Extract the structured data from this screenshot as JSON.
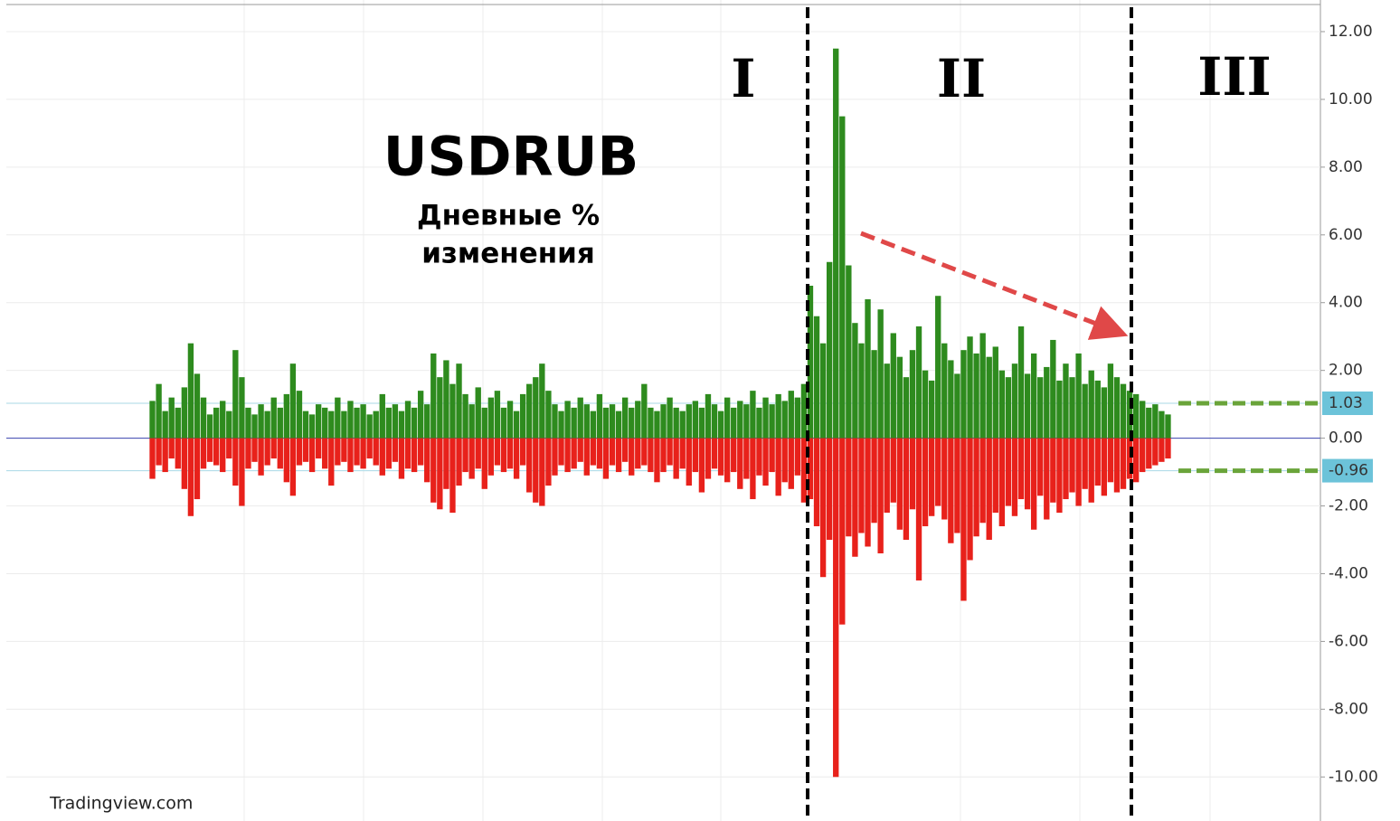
{
  "chart_data": {
    "type": "bar",
    "title": "USDRUB",
    "subtitle": [
      "Дневные %",
      "изменения"
    ],
    "regions": [
      "I",
      "II",
      "III"
    ],
    "watermark": "Tradingview.com",
    "ylim": [
      -11.3,
      12.8
    ],
    "yticks": [
      {
        "value": 12,
        "label": "12.00"
      },
      {
        "value": 10,
        "label": "10.00"
      },
      {
        "value": 8,
        "label": "8.00"
      },
      {
        "value": 6,
        "label": "6.00"
      },
      {
        "value": 4,
        "label": "4.00"
      },
      {
        "value": 2,
        "label": "2.00"
      },
      {
        "value": 0,
        "label": "0.00"
      },
      {
        "value": -2,
        "label": "-2.00"
      },
      {
        "value": -4,
        "label": "-4.00"
      },
      {
        "value": -6,
        "label": "-6.00"
      },
      {
        "value": -8,
        "label": "-8.00"
      },
      {
        "value": -10,
        "label": "-10.00"
      }
    ],
    "grid": true,
    "markers": [
      {
        "value": 1.03,
        "label": "1.03"
      },
      {
        "value": -0.96,
        "label": "-0.96"
      }
    ],
    "series": [
      {
        "color": "#2e8b1e",
        "values": [
          1.1,
          1.6,
          0.8,
          1.2,
          0.9,
          1.5,
          2.8,
          1.9,
          1.2,
          0.7,
          0.9,
          1.1,
          0.8,
          2.6,
          1.8,
          0.9,
          0.7,
          1.0,
          0.8,
          1.2,
          0.9,
          1.3,
          2.2,
          1.4,
          0.8,
          0.7,
          1.0,
          0.9,
          0.8,
          1.2,
          0.8,
          1.1,
          0.9,
          1.0,
          0.7,
          0.8,
          1.3,
          0.9,
          1.0,
          0.8,
          1.1,
          0.9,
          1.4,
          1.0,
          2.5,
          1.8,
          2.3,
          1.6,
          2.2,
          1.3,
          1.0,
          1.5,
          0.9,
          1.2,
          1.4,
          0.9,
          1.1,
          0.8,
          1.3,
          1.6,
          1.8,
          2.2,
          1.4,
          1.0,
          0.8,
          1.1,
          0.9,
          1.2,
          1.0,
          0.8,
          1.3,
          0.9,
          1.0,
          0.8,
          1.2,
          0.9,
          1.1,
          1.6,
          0.9,
          0.8,
          1.0,
          1.2,
          0.9,
          0.8,
          1.0,
          1.1,
          0.9,
          1.3,
          1.0,
          0.8,
          1.2,
          0.9,
          1.1,
          1.0,
          1.4,
          0.9,
          1.2,
          1.0,
          1.3,
          1.1,
          1.4,
          1.2,
          1.6,
          4.5,
          3.6,
          2.8,
          5.2,
          11.5,
          9.5,
          5.1,
          3.4,
          2.8,
          4.1,
          2.6,
          3.8,
          2.2,
          3.1,
          2.4,
          1.8,
          2.6,
          3.3,
          2.0,
          1.7,
          4.2,
          2.8,
          2.3,
          1.9,
          2.6,
          3.0,
          2.5,
          3.1,
          2.4,
          2.7,
          2.0,
          1.8,
          2.2,
          3.3,
          1.9,
          2.5,
          1.8,
          2.1,
          2.9,
          1.7,
          2.2,
          1.8,
          2.5,
          1.6,
          2.0,
          1.7,
          1.5,
          2.2,
          1.8,
          1.6,
          1.4,
          1.3,
          1.1,
          0.9,
          1.0,
          0.8,
          0.7
        ]
      },
      {
        "color": "#e8211b",
        "values": [
          -1.2,
          -0.8,
          -1.0,
          -0.6,
          -0.9,
          -1.5,
          -2.3,
          -1.8,
          -0.9,
          -0.7,
          -0.8,
          -1.0,
          -0.6,
          -1.4,
          -2.0,
          -0.9,
          -0.7,
          -1.1,
          -0.8,
          -0.6,
          -0.9,
          -1.3,
          -1.7,
          -0.8,
          -0.7,
          -1.0,
          -0.6,
          -0.9,
          -1.4,
          -0.8,
          -0.7,
          -1.0,
          -0.8,
          -0.9,
          -0.6,
          -0.8,
          -1.1,
          -0.9,
          -0.7,
          -1.2,
          -0.9,
          -1.0,
          -0.8,
          -1.3,
          -1.9,
          -2.1,
          -1.5,
          -2.2,
          -1.4,
          -1.0,
          -1.2,
          -0.9,
          -1.5,
          -1.1,
          -0.8,
          -1.0,
          -0.9,
          -1.2,
          -0.8,
          -1.6,
          -1.9,
          -2.0,
          -1.4,
          -1.1,
          -0.8,
          -1.0,
          -0.9,
          -0.7,
          -1.1,
          -0.8,
          -0.9,
          -1.2,
          -0.8,
          -1.0,
          -0.7,
          -1.1,
          -0.9,
          -0.8,
          -1.0,
          -1.3,
          -1.0,
          -0.8,
          -1.2,
          -0.9,
          -1.4,
          -1.0,
          -1.6,
          -1.2,
          -0.9,
          -1.1,
          -1.3,
          -1.0,
          -1.5,
          -1.2,
          -1.8,
          -1.1,
          -1.4,
          -1.0,
          -1.7,
          -1.3,
          -1.5,
          -1.1,
          -1.9,
          -1.8,
          -2.6,
          -4.1,
          -3.0,
          -10.0,
          -5.5,
          -2.9,
          -3.5,
          -2.8,
          -3.2,
          -2.5,
          -3.4,
          -2.2,
          -1.9,
          -2.7,
          -3.0,
          -2.1,
          -4.2,
          -2.6,
          -2.3,
          -2.0,
          -2.4,
          -3.1,
          -2.8,
          -4.8,
          -3.6,
          -2.9,
          -2.5,
          -3.0,
          -2.2,
          -2.6,
          -2.0,
          -2.3,
          -1.8,
          -2.1,
          -2.7,
          -1.7,
          -2.4,
          -1.9,
          -2.2,
          -1.8,
          -1.6,
          -2.0,
          -1.5,
          -1.9,
          -1.4,
          -1.7,
          -1.3,
          -1.6,
          -1.5,
          -1.2,
          -1.3,
          -1.0,
          -0.9,
          -0.8,
          -0.7,
          -0.6
        ]
      }
    ]
  }
}
